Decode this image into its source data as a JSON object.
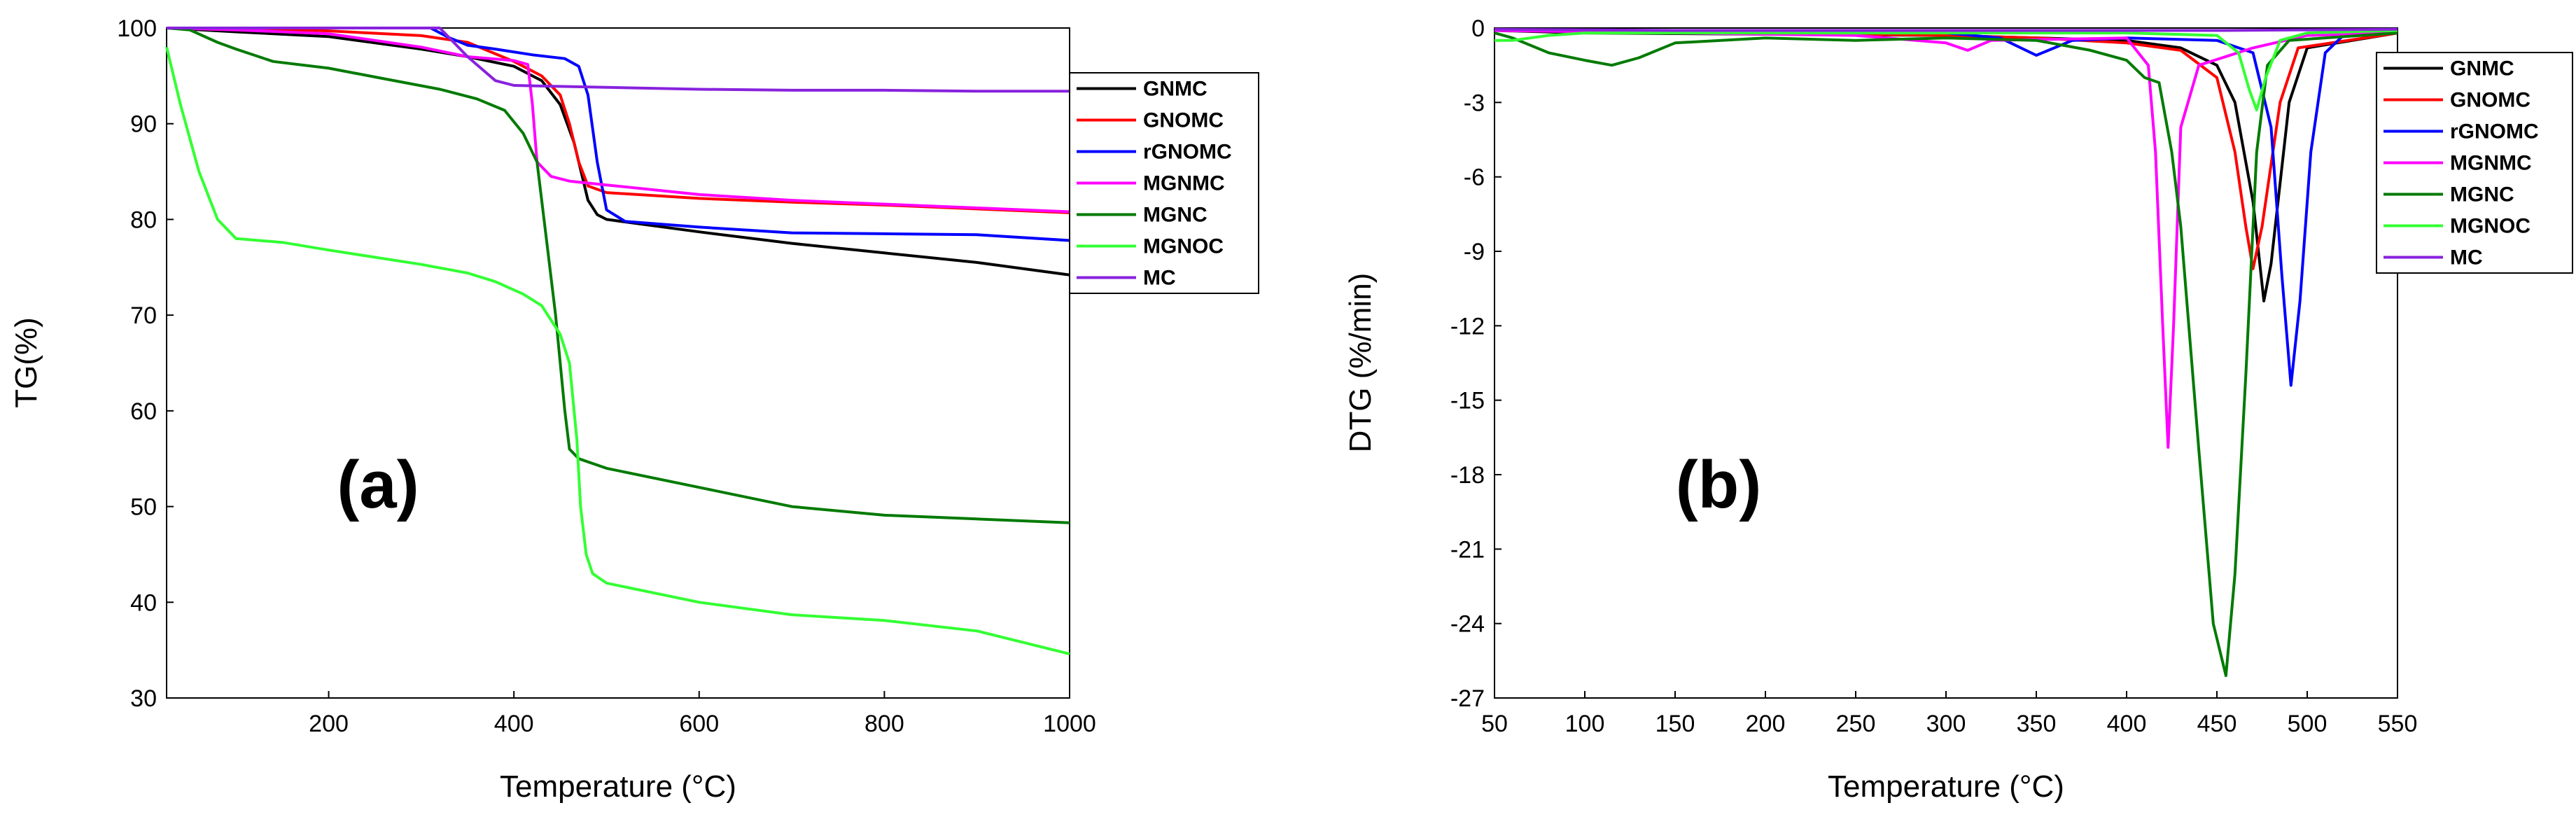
{
  "chart_data": [
    {
      "type": "line",
      "panel_label": "(a)",
      "xlabel": "Temperature (°C)",
      "ylabel": "TG(%)",
      "xlim": [
        25,
        1000
      ],
      "ylim": [
        30,
        100
      ],
      "xticks": [
        200,
        400,
        600,
        800,
        1000
      ],
      "yticks": [
        30,
        40,
        50,
        60,
        70,
        80,
        90,
        100
      ],
      "legend_position": "top-right",
      "series": [
        {
          "name": "GNMC",
          "color": "#000000",
          "points": [
            [
              25,
              100
            ],
            [
              100,
              99.6
            ],
            [
              200,
              99.1
            ],
            [
              300,
              97.8
            ],
            [
              350,
              97
            ],
            [
              400,
              96
            ],
            [
              430,
              94.5
            ],
            [
              450,
              92
            ],
            [
              465,
              88
            ],
            [
              475,
              84
            ],
            [
              480,
              82
            ],
            [
              490,
              80.5
            ],
            [
              500,
              80
            ],
            [
              600,
              78.7
            ],
            [
              700,
              77.5
            ],
            [
              800,
              76.5
            ],
            [
              900,
              75.5
            ],
            [
              1000,
              74.2
            ]
          ]
        },
        {
          "name": "GNOMC",
          "color": "#ff0000",
          "points": [
            [
              25,
              100
            ],
            [
              100,
              100
            ],
            [
              200,
              99.7
            ],
            [
              300,
              99.2
            ],
            [
              350,
              98.5
            ],
            [
              400,
              96.5
            ],
            [
              430,
              95
            ],
            [
              450,
              93
            ],
            [
              460,
              90
            ],
            [
              470,
              86
            ],
            [
              480,
              83.5
            ],
            [
              500,
              82.8
            ],
            [
              600,
              82.2
            ],
            [
              700,
              81.8
            ],
            [
              800,
              81.5
            ],
            [
              900,
              81.1
            ],
            [
              1000,
              80.7
            ]
          ]
        },
        {
          "name": "rGNOMC",
          "color": "#0000ff",
          "points": [
            [
              25,
              100
            ],
            [
              200,
              100
            ],
            [
              310,
              100
            ],
            [
              330,
              99
            ],
            [
              350,
              98.2
            ],
            [
              380,
              97.8
            ],
            [
              420,
              97.2
            ],
            [
              455,
              96.8
            ],
            [
              470,
              96
            ],
            [
              480,
              93
            ],
            [
              490,
              86
            ],
            [
              500,
              81
            ],
            [
              520,
              79.8
            ],
            [
              600,
              79.2
            ],
            [
              700,
              78.6
            ],
            [
              800,
              78.5
            ],
            [
              900,
              78.4
            ],
            [
              1000,
              77.8
            ]
          ]
        },
        {
          "name": "MGNMC",
          "color": "#ff00ff",
          "points": [
            [
              25,
              100
            ],
            [
              100,
              99.8
            ],
            [
              200,
              99.4
            ],
            [
              300,
              98
            ],
            [
              350,
              97
            ],
            [
              400,
              96.6
            ],
            [
              415,
              96.2
            ],
            [
              420,
              92
            ],
            [
              425,
              86
            ],
            [
              440,
              84.5
            ],
            [
              460,
              84
            ],
            [
              500,
              83.6
            ],
            [
              600,
              82.6
            ],
            [
              700,
              82
            ],
            [
              800,
              81.6
            ],
            [
              900,
              81.2
            ],
            [
              1000,
              80.8
            ]
          ]
        },
        {
          "name": "MGNC",
          "color": "#007a00",
          "points": [
            [
              25,
              100
            ],
            [
              50,
              99.8
            ],
            [
              80,
              98.5
            ],
            [
              100,
              97.8
            ],
            [
              140,
              96.5
            ],
            [
              200,
              95.8
            ],
            [
              260,
              94.7
            ],
            [
              320,
              93.6
            ],
            [
              360,
              92.6
            ],
            [
              390,
              91.4
            ],
            [
              410,
              89
            ],
            [
              425,
              86
            ],
            [
              435,
              78
            ],
            [
              445,
              70
            ],
            [
              450,
              65
            ],
            [
              455,
              60
            ],
            [
              460,
              56
            ],
            [
              470,
              55
            ],
            [
              500,
              54
            ],
            [
              600,
              52
            ],
            [
              700,
              50
            ],
            [
              800,
              49.1
            ],
            [
              900,
              48.7
            ],
            [
              1000,
              48.3
            ]
          ]
        },
        {
          "name": "MGNOC",
          "color": "#33ff33",
          "points": [
            [
              25,
              98
            ],
            [
              40,
              92
            ],
            [
              60,
              85
            ],
            [
              80,
              80
            ],
            [
              100,
              78
            ],
            [
              150,
              77.6
            ],
            [
              200,
              76.8
            ],
            [
              300,
              75.3
            ],
            [
              350,
              74.4
            ],
            [
              380,
              73.5
            ],
            [
              410,
              72.2
            ],
            [
              430,
              71
            ],
            [
              450,
              68
            ],
            [
              460,
              65
            ],
            [
              468,
              57
            ],
            [
              472,
              50
            ],
            [
              478,
              45
            ],
            [
              485,
              43
            ],
            [
              500,
              42
            ],
            [
              600,
              40
            ],
            [
              700,
              38.7
            ],
            [
              800,
              38.1
            ],
            [
              900,
              37
            ],
            [
              1000,
              34.6
            ]
          ]
        },
        {
          "name": "MC",
          "color": "#8822dd",
          "points": [
            [
              25,
              100
            ],
            [
              200,
              100
            ],
            [
              320,
              100
            ],
            [
              350,
              97
            ],
            [
              380,
              94.5
            ],
            [
              400,
              94
            ],
            [
              500,
              93.8
            ],
            [
              600,
              93.6
            ],
            [
              700,
              93.5
            ],
            [
              800,
              93.5
            ],
            [
              900,
              93.4
            ],
            [
              1000,
              93.4
            ]
          ]
        }
      ]
    },
    {
      "type": "line",
      "panel_label": "(b)",
      "xlabel": "Temperature (°C)",
      "ylabel": "DTG (%/min)",
      "xlim": [
        50,
        550
      ],
      "ylim": [
        -27,
        0
      ],
      "xticks": [
        50,
        100,
        150,
        200,
        250,
        300,
        350,
        400,
        450,
        500,
        550
      ],
      "yticks": [
        0,
        -3,
        -6,
        -9,
        -12,
        -15,
        -18,
        -21,
        -24,
        -27
      ],
      "legend_position": "top-right",
      "series": [
        {
          "name": "GNMC",
          "color": "#000000",
          "points": [
            [
              50,
              -0.1
            ],
            [
              100,
              -0.2
            ],
            [
              200,
              -0.25
            ],
            [
              300,
              -0.3
            ],
            [
              400,
              -0.5
            ],
            [
              430,
              -0.8
            ],
            [
              450,
              -1.5
            ],
            [
              460,
              -3
            ],
            [
              470,
              -7
            ],
            [
              476,
              -11
            ],
            [
              480,
              -9.5
            ],
            [
              490,
              -3
            ],
            [
              500,
              -0.8
            ],
            [
              550,
              -0.2
            ]
          ]
        },
        {
          "name": "GNOMC",
          "color": "#ff0000",
          "points": [
            [
              50,
              -0.1
            ],
            [
              100,
              -0.1
            ],
            [
              200,
              -0.2
            ],
            [
              300,
              -0.3
            ],
            [
              350,
              -0.4
            ],
            [
              400,
              -0.6
            ],
            [
              430,
              -0.9
            ],
            [
              450,
              -2
            ],
            [
              460,
              -5
            ],
            [
              466,
              -8
            ],
            [
              470,
              -9.7
            ],
            [
              475,
              -8
            ],
            [
              485,
              -3
            ],
            [
              495,
              -0.8
            ],
            [
              550,
              -0.2
            ]
          ]
        },
        {
          "name": "rGNOMC",
          "color": "#0000ff",
          "points": [
            [
              50,
              -0.1
            ],
            [
              200,
              -0.1
            ],
            [
              300,
              -0.2
            ],
            [
              330,
              -0.4
            ],
            [
              350,
              -1.1
            ],
            [
              370,
              -0.5
            ],
            [
              400,
              -0.4
            ],
            [
              450,
              -0.5
            ],
            [
              470,
              -1
            ],
            [
              480,
              -4
            ],
            [
              486,
              -10
            ],
            [
              491,
              -14.4
            ],
            [
              496,
              -11
            ],
            [
              502,
              -5
            ],
            [
              510,
              -1
            ],
            [
              520,
              -0.3
            ],
            [
              550,
              -0.2
            ]
          ]
        },
        {
          "name": "MGNMC",
          "color": "#ff00ff",
          "points": [
            [
              50,
              -0.1
            ],
            [
              150,
              -0.2
            ],
            [
              250,
              -0.3
            ],
            [
              300,
              -0.6
            ],
            [
              312,
              -0.9
            ],
            [
              325,
              -0.5
            ],
            [
              400,
              -0.4
            ],
            [
              412,
              -1.5
            ],
            [
              416,
              -5
            ],
            [
              420,
              -12
            ],
            [
              423,
              -16.9
            ],
            [
              426,
              -12
            ],
            [
              430,
              -4
            ],
            [
              440,
              -1.5
            ],
            [
              470,
              -0.8
            ],
            [
              500,
              -0.3
            ],
            [
              550,
              -0.2
            ]
          ]
        },
        {
          "name": "MGNC",
          "color": "#007a00",
          "points": [
            [
              50,
              -0.2
            ],
            [
              60,
              -0.4
            ],
            [
              80,
              -1
            ],
            [
              100,
              -1.3
            ],
            [
              115,
              -1.5
            ],
            [
              130,
              -1.2
            ],
            [
              150,
              -0.6
            ],
            [
              200,
              -0.4
            ],
            [
              250,
              -0.5
            ],
            [
              300,
              -0.4
            ],
            [
              350,
              -0.5
            ],
            [
              380,
              -0.9
            ],
            [
              400,
              -1.3
            ],
            [
              410,
              -2
            ],
            [
              418,
              -2.2
            ],
            [
              425,
              -5
            ],
            [
              430,
              -8
            ],
            [
              440,
              -17
            ],
            [
              448,
              -24
            ],
            [
              455,
              -26.1
            ],
            [
              460,
              -22
            ],
            [
              466,
              -14
            ],
            [
              472,
              -5
            ],
            [
              478,
              -1.5
            ],
            [
              490,
              -0.5
            ],
            [
              550,
              -0.2
            ]
          ]
        },
        {
          "name": "MGNOC",
          "color": "#33ff33",
          "points": [
            [
              50,
              -0.5
            ],
            [
              60,
              -0.5
            ],
            [
              80,
              -0.3
            ],
            [
              100,
              -0.2
            ],
            [
              200,
              -0.2
            ],
            [
              300,
              -0.2
            ],
            [
              400,
              -0.2
            ],
            [
              450,
              -0.3
            ],
            [
              462,
              -1
            ],
            [
              468,
              -2.5
            ],
            [
              472,
              -3.3
            ],
            [
              477,
              -2
            ],
            [
              485,
              -0.5
            ],
            [
              500,
              -0.2
            ],
            [
              550,
              -0.1
            ]
          ]
        },
        {
          "name": "MC",
          "color": "#8822dd",
          "points": [
            [
              50,
              -0.05
            ],
            [
              150,
              -0.1
            ],
            [
              300,
              -0.1
            ],
            [
              400,
              -0.1
            ],
            [
              450,
              -0.1
            ],
            [
              550,
              -0.05
            ]
          ]
        }
      ]
    }
  ]
}
